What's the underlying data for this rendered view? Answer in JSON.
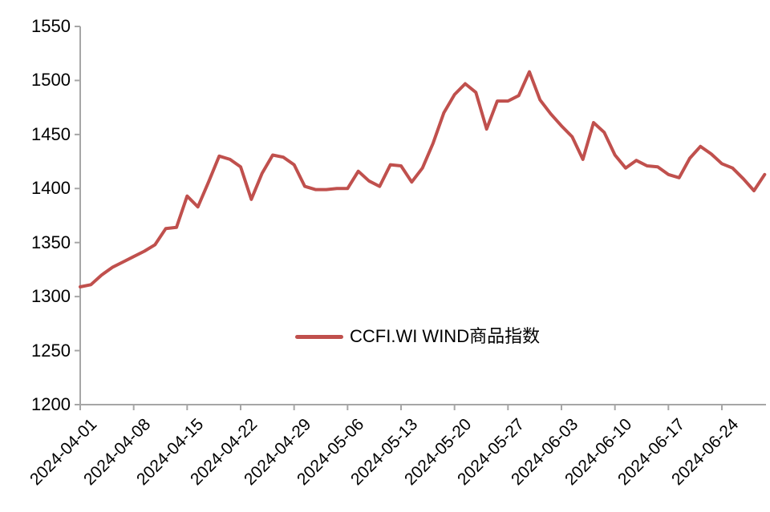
{
  "chart_data": {
    "type": "line",
    "title": "",
    "legend_label": "CCFI.WI WIND商品指数",
    "legend_position": "inside-bottom-center",
    "grid": false,
    "background_color": "#FFFFFF",
    "line_color": "#C0504D",
    "axis_color": "#A6A6A6",
    "text_color": "#000000",
    "ylim": [
      1200,
      1550
    ],
    "ytick_interval": 50,
    "yticks": [
      1200,
      1250,
      1300,
      1350,
      1400,
      1450,
      1500,
      1550
    ],
    "xtick_labels": [
      "2024-04-01",
      "2024-04-08",
      "2024-04-15",
      "2024-04-22",
      "2024-04-29",
      "2024-05-06",
      "2024-05-13",
      "2024-05-20",
      "2024-05-27",
      "2024-06-03",
      "2024-06-10",
      "2024-06-17",
      "2024-06-24"
    ],
    "x": [
      "2024-04-01",
      "2024-04-02",
      "2024-04-03",
      "2024-04-04",
      "2024-04-05",
      "2024-04-08",
      "2024-04-09",
      "2024-04-10",
      "2024-04-11",
      "2024-04-12",
      "2024-04-15",
      "2024-04-16",
      "2024-04-17",
      "2024-04-18",
      "2024-04-19",
      "2024-04-22",
      "2024-04-23",
      "2024-04-24",
      "2024-04-25",
      "2024-04-26",
      "2024-04-29",
      "2024-04-30",
      "2024-05-01",
      "2024-05-02",
      "2024-05-03",
      "2024-05-06",
      "2024-05-07",
      "2024-05-08",
      "2024-05-09",
      "2024-05-10",
      "2024-05-13",
      "2024-05-14",
      "2024-05-15",
      "2024-05-16",
      "2024-05-17",
      "2024-05-20",
      "2024-05-21",
      "2024-05-22",
      "2024-05-23",
      "2024-05-24",
      "2024-05-27",
      "2024-05-28",
      "2024-05-29",
      "2024-05-30",
      "2024-05-31",
      "2024-06-03",
      "2024-06-04",
      "2024-06-05",
      "2024-06-06",
      "2024-06-07",
      "2024-06-10",
      "2024-06-11",
      "2024-06-12",
      "2024-06-13",
      "2024-06-14",
      "2024-06-17",
      "2024-06-18",
      "2024-06-19",
      "2024-06-20",
      "2024-06-21",
      "2024-06-24",
      "2024-06-25",
      "2024-06-26",
      "2024-06-27",
      "2024-06-28"
    ],
    "series": [
      {
        "name": "CCFI.WI WIND商品指数",
        "values": [
          1309,
          1311,
          1320,
          1327,
          1332,
          1337,
          1342,
          1348,
          1363,
          1364,
          1393,
          1383,
          1406,
          1430,
          1427,
          1420,
          1390,
          1414,
          1431,
          1429,
          1422,
          1402,
          1399,
          1399,
          1400,
          1400,
          1416,
          1407,
          1402,
          1422,
          1421,
          1406,
          1419,
          1442,
          1470,
          1487,
          1497,
          1489,
          1455,
          1481,
          1481,
          1486,
          1508,
          1482,
          1469,
          1458,
          1448,
          1427,
          1461,
          1452,
          1431,
          1419,
          1426,
          1421,
          1420,
          1413,
          1410,
          1428,
          1439,
          1432,
          1423,
          1419,
          1409,
          1398,
          1413
        ]
      }
    ]
  }
}
